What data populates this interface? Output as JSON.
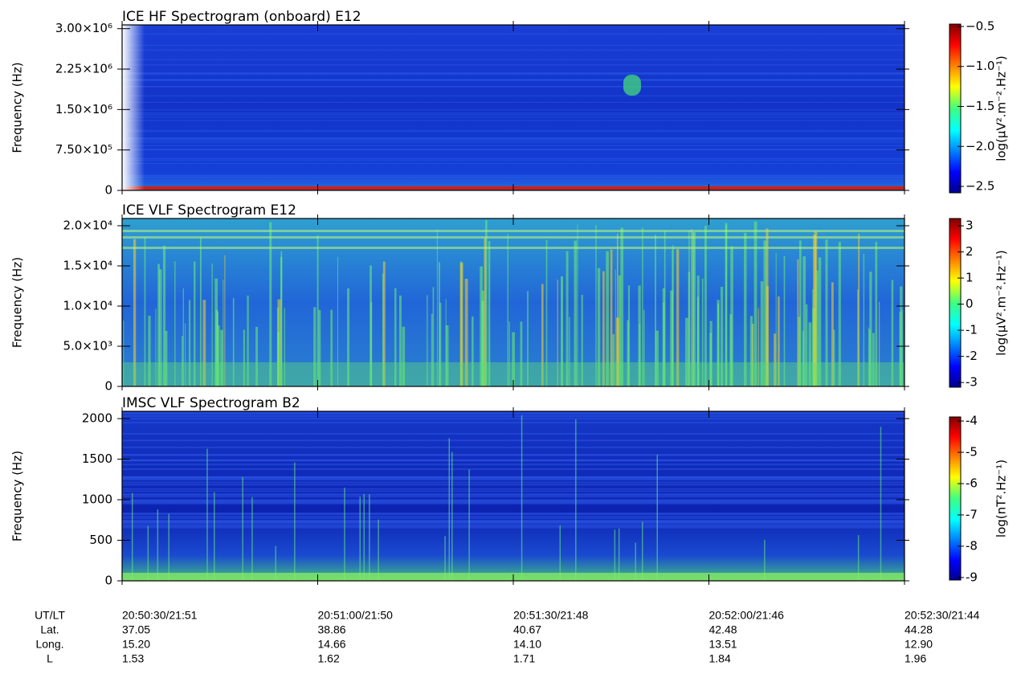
{
  "chart_data": [
    {
      "type": "spectrogram",
      "title": "ICE HF Spectrogram (onboard) E12",
      "ylabel": "Frequency (Hz)",
      "ylim": [
        0,
        3070000
      ],
      "yticks": [
        0,
        {
          "value": 750000,
          "label": "7.50×10⁵"
        },
        {
          "value": 1500000,
          "label": "1.50×10⁶"
        },
        {
          "value": 2250000,
          "label": "2.25×10⁶"
        },
        {
          "value": 3000000,
          "label": "3.00×10⁶"
        }
      ],
      "colorbar_label": "log(μV².m⁻².Hz⁻¹)",
      "clim": [
        -2.58,
        -0.47
      ],
      "cticks": [
        {
          "value": -0.5,
          "label": "−0.5"
        },
        {
          "value": -1.0,
          "label": "−1.0"
        },
        {
          "value": -1.5,
          "label": "−1.5"
        },
        {
          "value": -2.0,
          "label": "−2.0"
        },
        {
          "value": -2.5,
          "label": "−2.5"
        }
      ]
    },
    {
      "type": "spectrogram",
      "title": "ICE VLF Spectrogram E12",
      "ylabel": "Frequency (Hz)",
      "ylim": [
        0,
        20900
      ],
      "yticks": [
        0,
        {
          "value": 5000,
          "label": "5.0×10³"
        },
        {
          "value": 10000,
          "label": "1.0×10⁴"
        },
        {
          "value": 15000,
          "label": "1.5×10⁴"
        },
        {
          "value": 20000,
          "label": "2.0×10⁴"
        }
      ],
      "colorbar_label": "log(μV².m⁻².Hz⁻¹)",
      "clim": [
        -3.18,
        3.28
      ],
      "cticks": [
        3,
        2,
        1,
        0,
        -1,
        -2,
        -3
      ]
    },
    {
      "type": "spectrogram",
      "title": "IMSC VLF Spectrogram B2",
      "ylabel": "Frequency (Hz)",
      "ylim": [
        0,
        2090
      ],
      "yticks": [
        0,
        500,
        1000,
        1500,
        2000
      ],
      "colorbar_label": "log(nT².Hz⁻¹)",
      "clim": [
        -9.08,
        -3.87
      ],
      "cticks": [
        -4,
        -5,
        -6,
        -7,
        -8,
        -9
      ]
    }
  ],
  "ephemeris": {
    "labels": [
      "UT/LT",
      "Lat.",
      "Long.",
      "L"
    ],
    "columns": [
      [
        "20:50:30/21:51",
        "37.05",
        "15.20",
        "1.53"
      ],
      [
        "20:51:00/21:50",
        "38.86",
        "14.66",
        "1.62"
      ],
      [
        "20:51:30/21:48",
        "40.67",
        "14.10",
        "1.71"
      ],
      [
        "20:52:00/21:46",
        "42.48",
        "13.51",
        "1.84"
      ],
      [
        "20:52:30/21:44",
        "44.28",
        "12.90",
        "1.96"
      ]
    ]
  }
}
